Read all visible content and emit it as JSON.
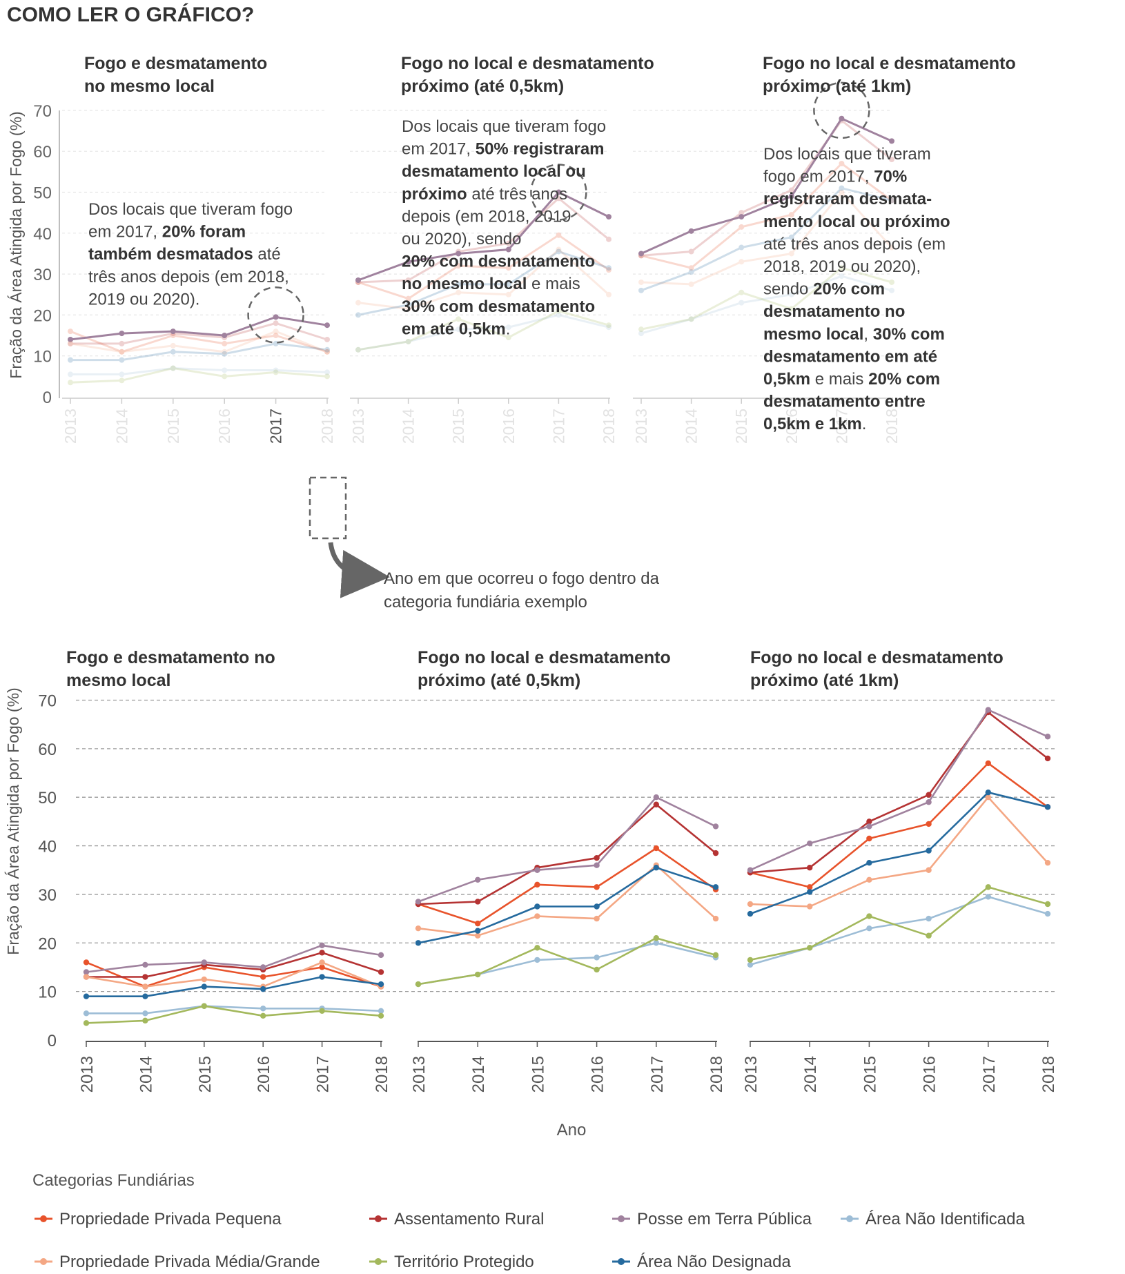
{
  "header": {
    "title": "COMO LER O GRÁFICO?"
  },
  "explainer": {
    "panel_titles": [
      [
        "Fogo e desmatamento",
        "no mesmo local"
      ],
      [
        "Fogo no local e desmatamento",
        "próximo (até 0,5km)"
      ],
      [
        "Fogo no local e desmatamento",
        "próximo (até 1km)"
      ]
    ],
    "annotations": [
      [
        [
          {
            "t": "Dos locais que tiveram fogo"
          }
        ],
        [
          {
            "t": "em 2017, "
          },
          {
            "t": "20% foram",
            "b": true
          }
        ],
        [
          {
            "t": "também desmatados",
            "b": true
          },
          {
            "t": " até"
          }
        ],
        [
          {
            "t": "três anos depois (em 2018,"
          }
        ],
        [
          {
            "t": "2019 ou 2020)."
          }
        ]
      ],
      [
        [
          {
            "t": "Dos locais que tiveram fogo"
          }
        ],
        [
          {
            "t": "em 2017, "
          },
          {
            "t": "50% registraram",
            "b": true
          }
        ],
        [
          {
            "t": "desmatamento local ou",
            "b": true
          }
        ],
        [
          {
            "t": "próximo",
            "b": true
          },
          {
            "t": " até três anos"
          }
        ],
        [
          {
            "t": "depois (em 2018, 2019"
          }
        ],
        [
          {
            "t": "ou 2020), sendo"
          }
        ],
        [
          {
            "t": "20% com desmatamento",
            "b": true
          }
        ],
        [
          {
            "t": "no mesmo local",
            "b": true
          },
          {
            "t": " e mais"
          }
        ],
        [
          {
            "t": "30% com desmatamento",
            "b": true
          }
        ],
        [
          {
            "t": "em até 0,5km",
            "b": true
          },
          {
            "t": "."
          }
        ]
      ],
      [
        [
          {
            "t": "Dos locais que tiveram"
          }
        ],
        [
          {
            "t": "fogo em 2017, "
          },
          {
            "t": "70%",
            "b": true
          }
        ],
        [
          {
            "t": "registraram desmata-",
            "b": true
          }
        ],
        [
          {
            "t": "mento local ou próximo",
            "b": true
          }
        ],
        [
          {
            "t": "até três anos depois (em"
          }
        ],
        [
          {
            "t": "2018, 2019 ou 2020),"
          }
        ],
        [
          {
            "t": "sendo "
          },
          {
            "t": "20% com",
            "b": true
          }
        ],
        [
          {
            "t": "desmatamento no",
            "b": true
          }
        ],
        [
          {
            "t": "mesmo local",
            "b": true
          },
          {
            "t": ", "
          },
          {
            "t": "30% com",
            "b": true
          }
        ],
        [
          {
            "t": "desmatamento em até",
            "b": true
          }
        ],
        [
          {
            "t": "0,5km",
            "b": true
          },
          {
            "t": " e mais "
          },
          {
            "t": "20% com",
            "b": true
          }
        ],
        [
          {
            "t": "desmatamento entre",
            "b": true
          }
        ],
        [
          {
            "t": "0,5km e 1km",
            "b": true
          },
          {
            "t": "."
          }
        ]
      ]
    ],
    "callout": [
      "Ano em que ocorreu o fogo dentro da",
      "categoria fundiária exemplo"
    ],
    "highlight_values": [
      20,
      50,
      70
    ]
  },
  "main": {
    "panel_titles": [
      [
        "Fogo e desmatamento no",
        "mesmo local"
      ],
      [
        "Fogo no local e desmatamento",
        "próximo (até 0,5km)"
      ],
      [
        "Fogo no local e desmatamento",
        "próximo (até 1km)"
      ]
    ]
  },
  "chart_data": {
    "type": "line",
    "ylabel": "Fração da Área Atingida por Fogo (%)",
    "xlabel": "Ano",
    "ylim": [
      0,
      70
    ],
    "yticks": [
      0,
      10,
      20,
      30,
      40,
      50,
      60,
      70
    ],
    "grid": "dashed horizontal",
    "x": [
      "2013",
      "2014",
      "2015",
      "2016",
      "2017",
      "2018"
    ],
    "series_order": [
      "Propriedade Privada Pequena",
      "Assentamento Rural",
      "Posse em Terra Pública",
      "Área Não Identificada",
      "Propriedade Privada Média/Grande",
      "Território Protegido",
      "Área Não Designada"
    ],
    "colors": {
      "Propriedade Privada Pequena": "#e8532b",
      "Assentamento Rural": "#b53333",
      "Posse em Terra Pública": "#a0829e",
      "Área Não Identificada": "#9dbdd6",
      "Propriedade Privada Média/Grande": "#f4a784",
      "Território Protegido": "#a3b85c",
      "Área Não Designada": "#256a9e"
    },
    "panels": [
      {
        "series": [
          {
            "name": "Propriedade Privada Pequena",
            "values": [
              16,
              11,
              15,
              13,
              15,
              11
            ]
          },
          {
            "name": "Assentamento Rural",
            "values": [
              13,
              13,
              15.5,
              14.5,
              18,
              14
            ]
          },
          {
            "name": "Posse em Terra Pública",
            "values": [
              14,
              15.5,
              16,
              15,
              19.5,
              17.5
            ]
          },
          {
            "name": "Área Não Identificada",
            "values": [
              5.5,
              5.5,
              7,
              6.5,
              6.5,
              6
            ]
          },
          {
            "name": "Propriedade Privada Média/Grande",
            "values": [
              13,
              11,
              12.5,
              11,
              16,
              11
            ]
          },
          {
            "name": "Território Protegido",
            "values": [
              3.5,
              4,
              7,
              5,
              6,
              5
            ]
          },
          {
            "name": "Área Não Designada",
            "values": [
              9,
              9,
              11,
              10.5,
              13,
              11.5
            ]
          }
        ]
      },
      {
        "series": [
          {
            "name": "Propriedade Privada Pequena",
            "values": [
              28,
              24,
              32,
              31.5,
              39.5,
              31
            ]
          },
          {
            "name": "Assentamento Rural",
            "values": [
              28,
              28.5,
              35.5,
              37.5,
              48.5,
              38.5
            ]
          },
          {
            "name": "Posse em Terra Pública",
            "values": [
              28.5,
              33,
              35,
              36,
              50,
              44
            ]
          },
          {
            "name": "Área Não Identificada",
            "values": [
              11.5,
              13.5,
              16.5,
              17,
              20,
              17
            ]
          },
          {
            "name": "Propriedade Privada Média/Grande",
            "values": [
              23,
              21.5,
              25.5,
              25,
              36,
              25
            ]
          },
          {
            "name": "Território Protegido",
            "values": [
              11.5,
              13.5,
              19,
              14.5,
              21,
              17.5
            ]
          },
          {
            "name": "Área Não Designada",
            "values": [
              20,
              22.5,
              27.5,
              27.5,
              35.5,
              31.5
            ]
          }
        ]
      },
      {
        "series": [
          {
            "name": "Propriedade Privada Pequena",
            "values": [
              34.5,
              31.5,
              41.5,
              44.5,
              57,
              48
            ]
          },
          {
            "name": "Assentamento Rural",
            "values": [
              34.5,
              35.5,
              45,
              50.5,
              67.5,
              58
            ]
          },
          {
            "name": "Posse em Terra Pública",
            "values": [
              35,
              40.5,
              44,
              49,
              68,
              62.5
            ]
          },
          {
            "name": "Área Não Identificada",
            "values": [
              15.5,
              19,
              23,
              25,
              29.5,
              26
            ]
          },
          {
            "name": "Propriedade Privada Média/Grande",
            "values": [
              28,
              27.5,
              33,
              35,
              50,
              36.5
            ]
          },
          {
            "name": "Território Protegido",
            "values": [
              16.5,
              19,
              25.5,
              21.5,
              31.5,
              28
            ]
          },
          {
            "name": "Área Não Designada",
            "values": [
              26,
              30.5,
              36.5,
              39,
              51,
              48
            ]
          }
        ]
      }
    ],
    "legend": {
      "title": "Categorias Fundiárias",
      "position": "bottom",
      "rows": [
        [
          "Propriedade Privada Pequena",
          "Assentamento Rural",
          "Posse em Terra Pública",
          "Área Não Identificada"
        ],
        [
          "Propriedade Privada Média/Grande",
          "Território Protegido",
          "Área Não Designada"
        ]
      ]
    }
  }
}
